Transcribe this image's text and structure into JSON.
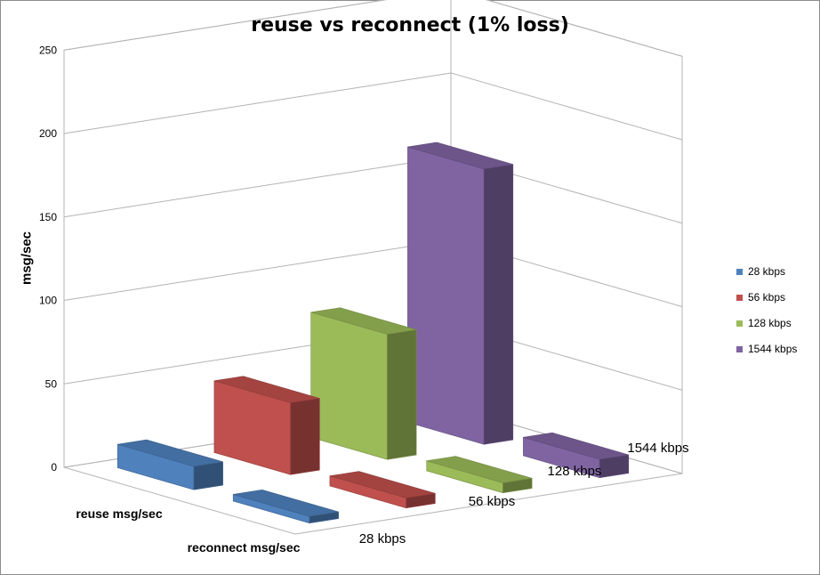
{
  "chart_data": {
    "type": "bar",
    "subtype": "3d-column",
    "title": "reuse vs reconnect (1% loss)",
    "ylabel": "msg/sec",
    "xlabel": "",
    "ylim": [
      0,
      250
    ],
    "yticks": [
      0,
      50,
      100,
      150,
      200,
      250
    ],
    "categories": [
      "reuse msg/sec",
      "reconnect msg/sec"
    ],
    "series": [
      {
        "name": "28 kbps",
        "color": "#4f81bd",
        "values": [
          14,
          4
        ]
      },
      {
        "name": "56 kbps",
        "color": "#c0504d",
        "values": [
          43,
          6
        ]
      },
      {
        "name": "128 kbps",
        "color": "#9bbb59",
        "values": [
          75,
          6
        ]
      },
      {
        "name": "1544 kbps",
        "color": "#8064a2",
        "values": [
          165,
          11
        ]
      }
    ],
    "grid": true,
    "legend": "right"
  }
}
